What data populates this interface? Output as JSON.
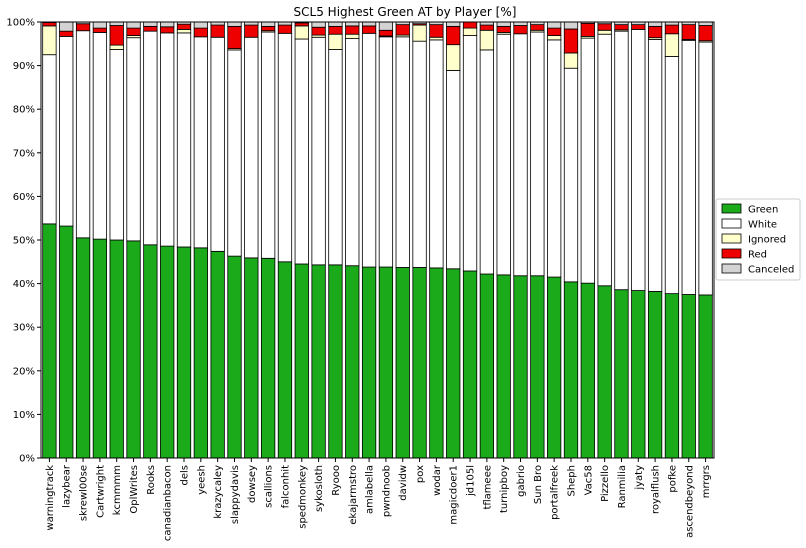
{
  "chart_data": {
    "type": "bar",
    "stacked": true,
    "percent_stacked": true,
    "title": "SCL5 Highest Green AT by Player [%]",
    "xlabel": "",
    "ylabel": "",
    "ylim": [
      0,
      100
    ],
    "yticks": [
      0,
      10,
      20,
      30,
      40,
      50,
      60,
      70,
      80,
      90,
      100
    ],
    "ytick_labels": [
      "0%",
      "10%",
      "20%",
      "30%",
      "40%",
      "50%",
      "60%",
      "70%",
      "80%",
      "90%",
      "100%"
    ],
    "grid": false,
    "legend_position": "right",
    "categories": [
      "warningtrack",
      "lazybear",
      "skrewl00se",
      "Cartwright",
      "kcmmmm",
      "OplWrites",
      "Rooks",
      "canadianbacon",
      "dels",
      "yeesh",
      "krazycaley",
      "slappydavis",
      "dowsey",
      "scallions",
      "falconhit",
      "spedmonkey",
      "sykosloth",
      "Ryooo",
      "ekajarmstro",
      "amlabella",
      "pwndnoob",
      "davidw",
      "pox",
      "wodar",
      "magicdoer1",
      "jd105l",
      "tflameee",
      "turnipboy",
      "gabrio",
      "Sun Bro",
      "portalfreek",
      "Sheph",
      "Vac58",
      "Pizzello",
      "Ranmilia",
      "jyaty",
      "royalflush",
      "pofke",
      "ascendbeyond",
      "mrrgrs"
    ],
    "series": [
      {
        "name": "Green",
        "color": "#1aaa1a",
        "values": [
          53.7,
          53.2,
          50.5,
          50.2,
          50.0,
          49.8,
          48.9,
          48.6,
          48.4,
          48.2,
          47.4,
          46.3,
          45.9,
          45.8,
          45.0,
          44.5,
          44.3,
          44.3,
          44.1,
          43.8,
          43.8,
          43.7,
          43.7,
          43.6,
          43.4,
          42.9,
          42.2,
          42.0,
          41.8,
          41.8,
          41.5,
          40.4,
          40.1,
          39.5,
          38.6,
          38.4,
          38.2,
          37.7,
          37.5,
          37.4
        ]
      },
      {
        "name": "White",
        "color": "#ffffff",
        "values": [
          38.8,
          43.5,
          47.5,
          47.4,
          43.7,
          46.6,
          49.0,
          48.9,
          49.1,
          48.4,
          49.1,
          47.3,
          50.6,
          51.9,
          52.4,
          51.6,
          52.2,
          49.4,
          52.1,
          53.6,
          52.8,
          52.9,
          51.9,
          52.3,
          45.5,
          54.0,
          51.4,
          55.2,
          55.5,
          55.9,
          54.4,
          49.0,
          56.2,
          57.7,
          59.3,
          59.9,
          57.8,
          54.4,
          58.3,
          58.0
        ]
      },
      {
        "name": "Ignored",
        "color": "#ffffcc",
        "values": [
          6.6,
          0.0,
          0.0,
          0.0,
          1.0,
          0.5,
          0.0,
          0.0,
          0.8,
          0.0,
          0.0,
          0.3,
          0.0,
          0.3,
          0.0,
          3.0,
          0.5,
          3.5,
          1.0,
          0.0,
          0.2,
          0.4,
          3.7,
          0.6,
          5.9,
          1.7,
          4.5,
          0.4,
          0.0,
          0.4,
          1.0,
          3.5,
          0.4,
          0.9,
          0.3,
          0.0,
          0.4,
          5.2,
          0.2,
          0.3
        ]
      },
      {
        "name": "Red",
        "color": "#ee0000",
        "values": [
          0.8,
          1.2,
          1.6,
          1.0,
          4.5,
          1.7,
          1.1,
          1.4,
          1.2,
          2.0,
          2.8,
          5.1,
          2.8,
          1.0,
          1.9,
          0.7,
          1.8,
          1.8,
          1.9,
          1.7,
          1.3,
          2.4,
          0.3,
          2.9,
          4.2,
          1.4,
          1.2,
          1.4,
          1.9,
          1.3,
          1.7,
          5.5,
          3.0,
          1.5,
          1.2,
          1.1,
          2.6,
          2.0,
          3.4,
          3.5
        ]
      },
      {
        "name": "Canceled",
        "color": "#d3d3d3",
        "values": [
          0.1,
          2.1,
          0.4,
          1.4,
          0.8,
          1.4,
          1.0,
          1.1,
          0.5,
          1.4,
          0.7,
          1.0,
          0.7,
          1.0,
          0.7,
          0.2,
          1.2,
          1.0,
          0.9,
          0.9,
          1.9,
          0.6,
          0.4,
          0.6,
          1.0,
          0.0,
          0.7,
          1.0,
          0.8,
          0.6,
          1.4,
          1.6,
          0.3,
          0.4,
          0.6,
          0.6,
          1.0,
          0.7,
          0.6,
          0.8
        ]
      }
    ]
  }
}
